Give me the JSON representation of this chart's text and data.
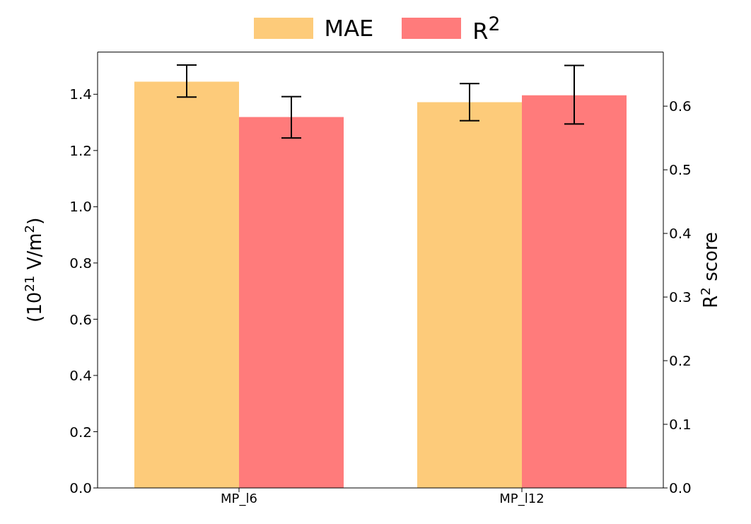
{
  "chart_data": {
    "type": "bar",
    "categories": [
      "MP_l6",
      "MP_l12"
    ],
    "series": [
      {
        "name": "MAE",
        "color": "#fdcb7a",
        "values": [
          1.445,
          1.372
        ],
        "errors": [
          [
            1.39,
            1.504
          ],
          [
            1.306,
            1.438
          ]
        ]
      },
      {
        "name": "R$^{2}$",
        "color": "#ff7b7b",
        "values": [
          0.583,
          0.617
        ],
        "errors": [
          [
            0.55,
            0.615
          ],
          [
            0.572,
            0.664
          ]
        ],
        "axis": "y2"
      }
    ],
    "ylabel": "(10$^{21}$ V/m$^{2}$)",
    "y2label": "R$^{2}$ score",
    "ylim": [
      0,
      1.55
    ],
    "yticks": [
      {
        "value": 0,
        "label": "0.0"
      },
      0.2,
      0.4,
      0.6,
      0.8,
      {
        "value": 1,
        "label": "1.0"
      },
      1.2,
      1.4
    ],
    "y2lim": [
      0,
      0.685
    ],
    "y2ticks": [
      {
        "value": 0,
        "label": "0.0"
      },
      0.1,
      0.2,
      0.3,
      0.4,
      0.5,
      0.6
    ],
    "legend": "top",
    "grid": false
  }
}
